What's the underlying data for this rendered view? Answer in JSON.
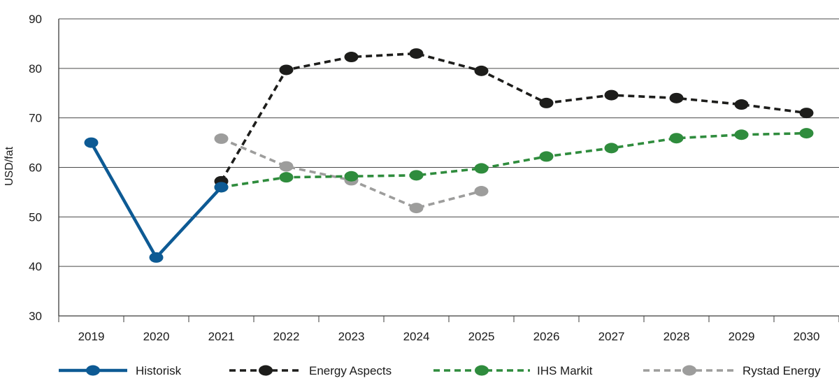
{
  "chart_data": {
    "type": "line",
    "ylabel": "USD/fat",
    "ylim": [
      30,
      90
    ],
    "yticks": [
      "30",
      "40",
      "50",
      "60",
      "70",
      "80",
      "90"
    ],
    "categories": [
      "2019",
      "2020",
      "2021",
      "2022",
      "2023",
      "2024",
      "2025",
      "2026",
      "2027",
      "2028",
      "2029",
      "2030"
    ],
    "grid": "horizontal",
    "legend_position": "bottom",
    "series": [
      {
        "name": "Historisk",
        "color": "#0d5a94",
        "style": "solid",
        "points": [
          [
            "2019",
            65
          ],
          [
            "2020",
            41.8
          ],
          [
            "2021",
            56
          ]
        ]
      },
      {
        "name": "Energy Aspects",
        "color": "#1d1d1b",
        "style": "dashed",
        "points": [
          [
            "2021",
            57.2
          ],
          [
            "2022",
            79.7
          ],
          [
            "2023",
            82.3
          ],
          [
            "2024",
            83
          ],
          [
            "2025",
            79.5
          ],
          [
            "2026",
            73
          ],
          [
            "2027",
            74.6
          ],
          [
            "2028",
            74
          ],
          [
            "2029",
            72.7
          ],
          [
            "2030",
            71
          ]
        ]
      },
      {
        "name": "IHS Markit",
        "color": "#2f8c3d",
        "style": "dashed",
        "points": [
          [
            "2021",
            56
          ],
          [
            "2022",
            58
          ],
          [
            "2023",
            58.2
          ],
          [
            "2024",
            58.4
          ],
          [
            "2025",
            59.8
          ],
          [
            "2026",
            62.2
          ],
          [
            "2027",
            63.9
          ],
          [
            "2028",
            65.9
          ],
          [
            "2029",
            66.6
          ],
          [
            "2030",
            66.9
          ]
        ]
      },
      {
        "name": "Rystad Energy",
        "color": "#9d9d9c",
        "style": "dashed",
        "points": [
          [
            "2021",
            65.8
          ],
          [
            "2022",
            60.2
          ],
          [
            "2023",
            57.4
          ],
          [
            "2024",
            51.8
          ],
          [
            "2025",
            55.2
          ]
        ]
      }
    ]
  }
}
